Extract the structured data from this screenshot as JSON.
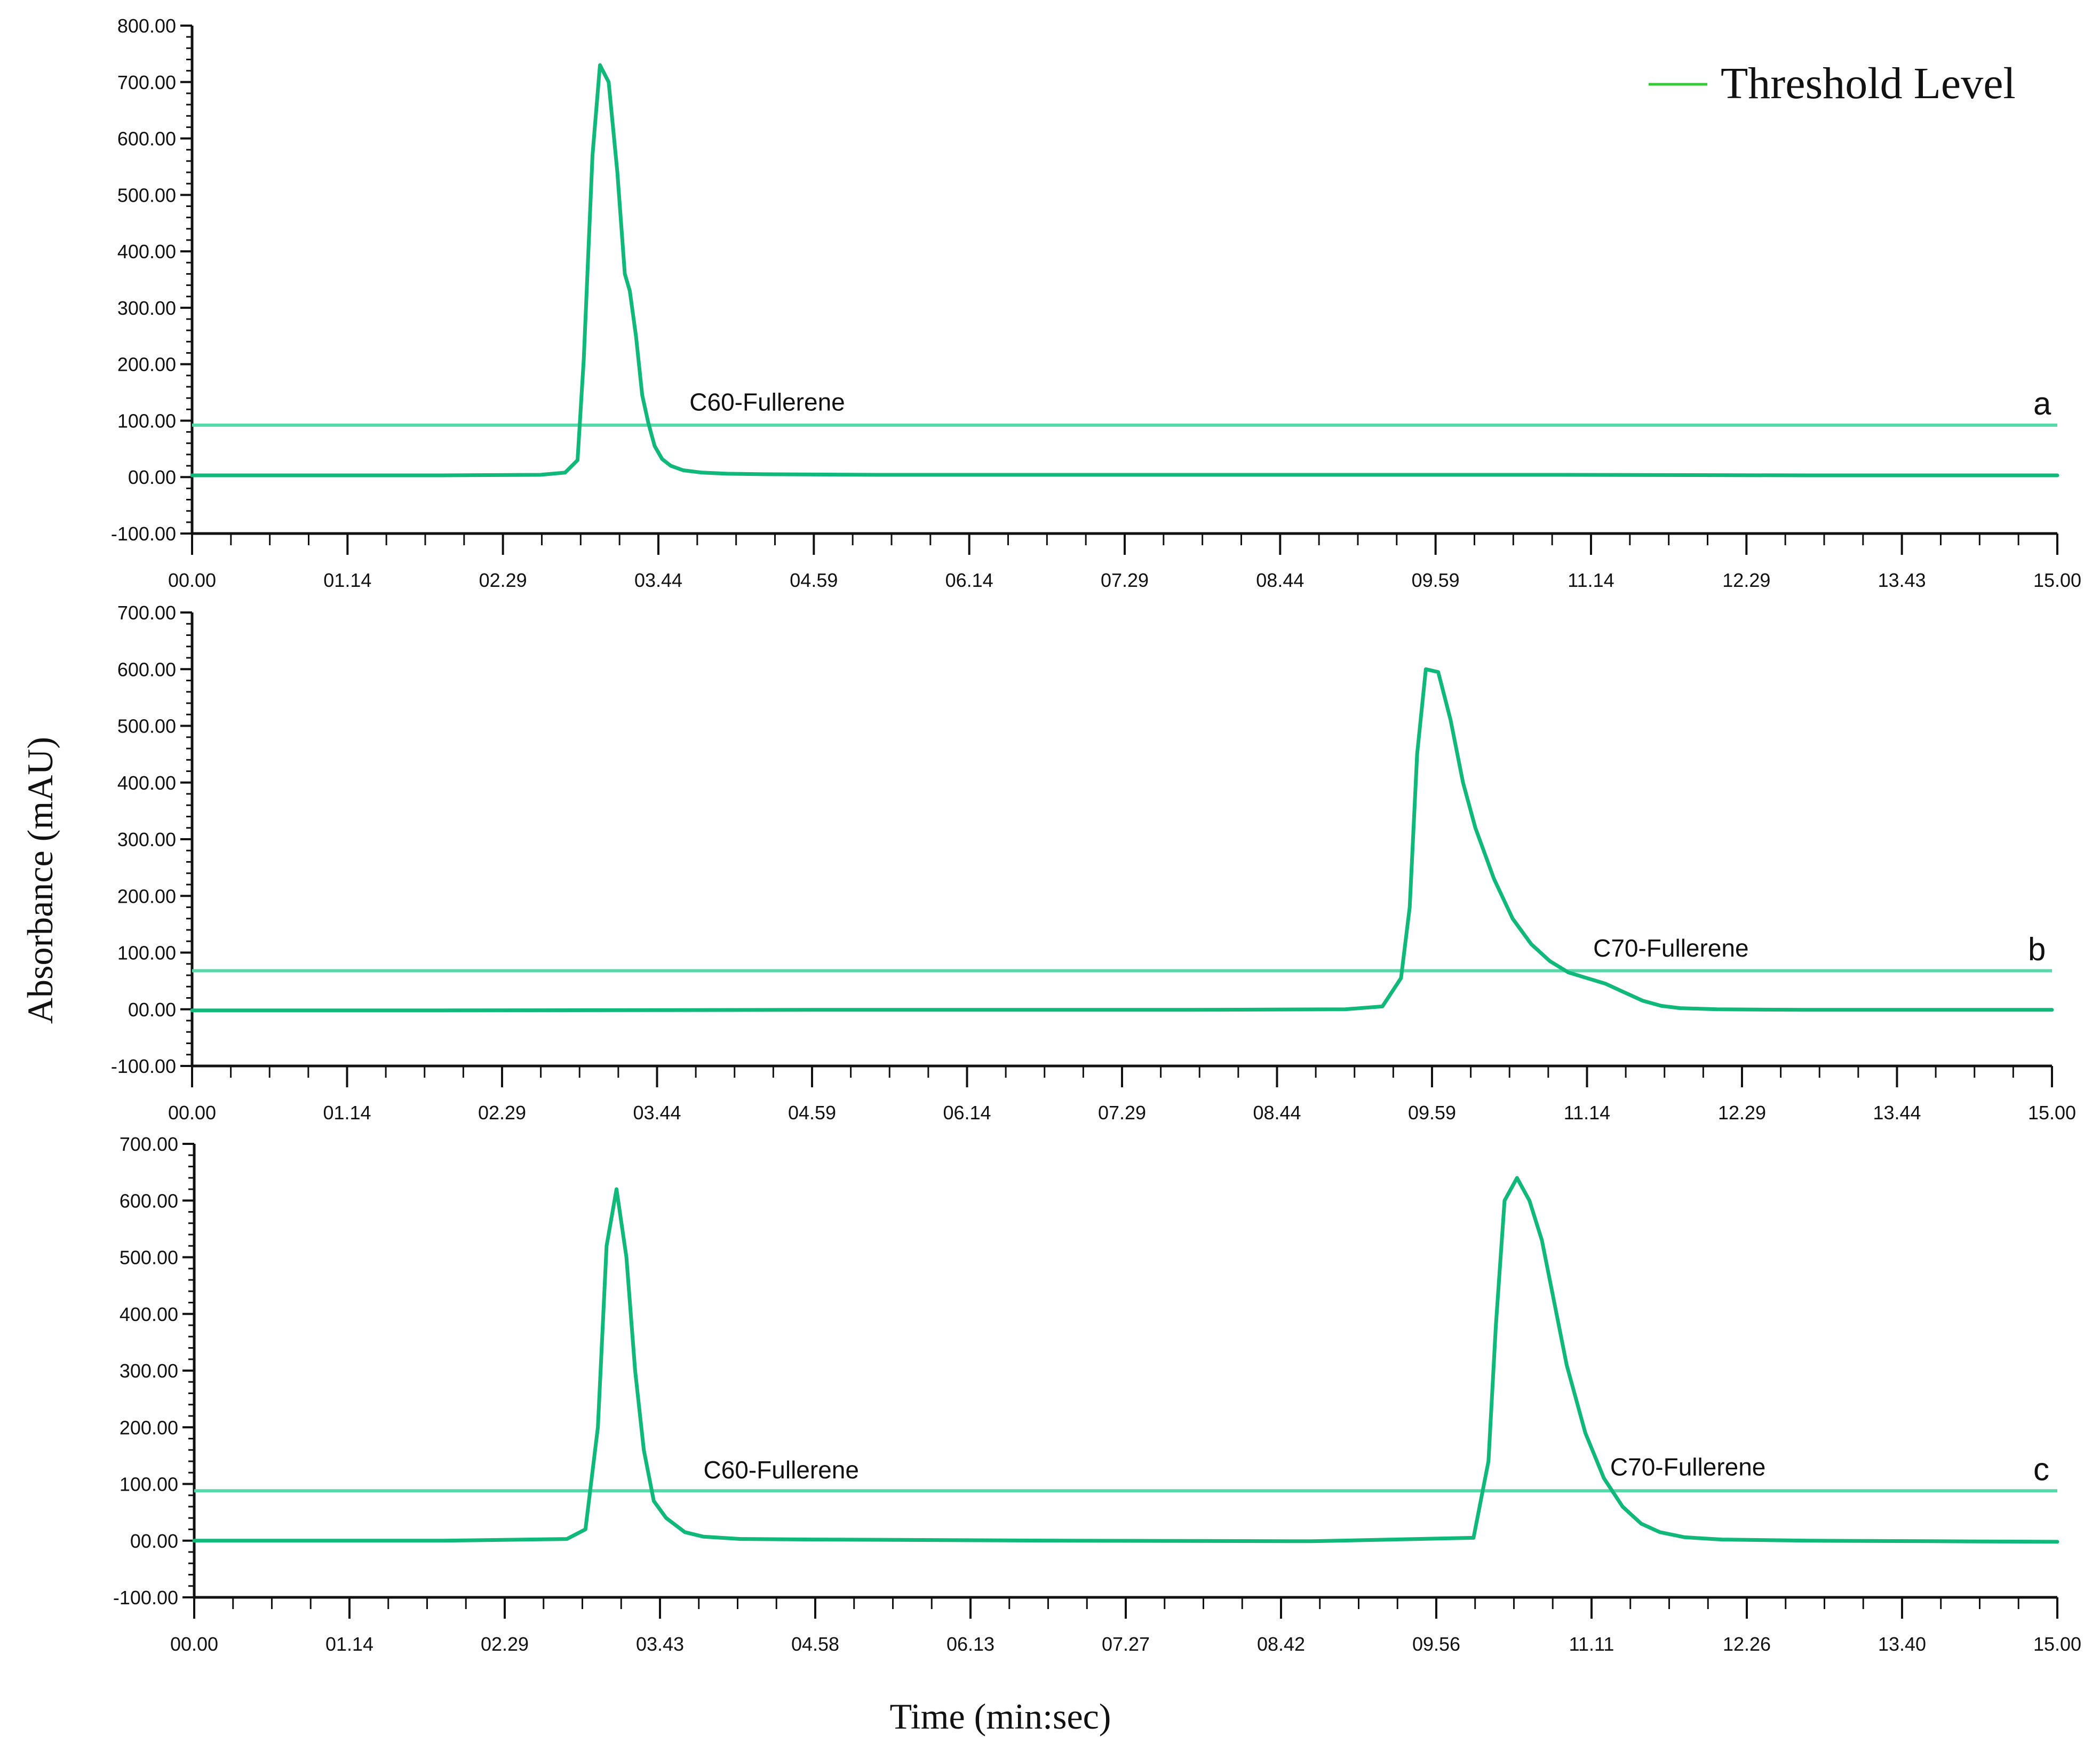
{
  "chart_data": {
    "type": "line",
    "xlabel": "Time (min:sec)",
    "ylabel": "Absorbance (mAU)",
    "legend": {
      "label": "Threshold Level",
      "color": "#33cc33",
      "placement": "top-right"
    },
    "series_color": "#10b87a",
    "threshold_color": "#56d8a8",
    "panels": [
      {
        "id": "a",
        "label": "a",
        "ylim": [
          -100,
          800
        ],
        "yticks": [
          "-100.00",
          "00.00",
          "100.00",
          "200.00",
          "300.00",
          "400.00",
          "500.00",
          "600.00",
          "700.00",
          "800.00"
        ],
        "ytick_values": [
          -100,
          0,
          100,
          200,
          300,
          400,
          500,
          600,
          700,
          800
        ],
        "xlim": [
          0,
          15
        ],
        "xticks": [
          "00.00",
          "01.14",
          "02.29",
          "03.44",
          "04.59",
          "06.14",
          "07.29",
          "08.44",
          "09.59",
          "11.14",
          "12.29",
          "13.43",
          "15.00"
        ],
        "threshold": 92,
        "annotations": [
          {
            "text": "C60-Fullerene",
            "x": 4.0,
            "y": 118
          }
        ],
        "series": [
          {
            "x": [
              0,
              1.0,
              2.0,
              2.8,
              3.0,
              3.1,
              3.15,
              3.22,
              3.28,
              3.35,
              3.42,
              3.48,
              3.52,
              3.57,
              3.62,
              3.67,
              3.72,
              3.78,
              3.85,
              3.95,
              4.1,
              4.3,
              4.6,
              5.5,
              7.0,
              9.0,
              11.0,
              13.0,
              15.0
            ],
            "y": [
              3,
              3,
              3,
              4,
              8,
              30,
              210,
              570,
              730,
              700,
              540,
              360,
              330,
              250,
              145,
              95,
              55,
              32,
              20,
              12,
              8,
              6,
              5,
              4,
              4,
              4,
              4,
              3,
              3
            ]
          }
        ]
      },
      {
        "id": "b",
        "label": "b",
        "ylim": [
          -100,
          700
        ],
        "yticks": [
          "-100.00",
          "00.00",
          "100.00",
          "200.00",
          "300.00",
          "400.00",
          "500.00",
          "600.00",
          "700.00"
        ],
        "ytick_values": [
          -100,
          0,
          100,
          200,
          300,
          400,
          500,
          600,
          700
        ],
        "xlim": [
          0,
          15
        ],
        "xticks": [
          "00.00",
          "01.14",
          "02.29",
          "03.44",
          "04.59",
          "06.14",
          "07.29",
          "08.44",
          "09.59",
          "11.14",
          "12.29",
          "13.44",
          "15.00"
        ],
        "threshold": 68,
        "annotations": [
          {
            "text": "C70-Fullerene",
            "x": 11.3,
            "y": 93
          }
        ],
        "series": [
          {
            "x": [
              0,
              2.0,
              5.0,
              8.0,
              9.3,
              9.6,
              9.75,
              9.82,
              9.88,
              9.95,
              10.05,
              10.15,
              10.25,
              10.35,
              10.5,
              10.65,
              10.8,
              10.95,
              11.1,
              11.25,
              11.4,
              11.55,
              11.7,
              11.85,
              12.0,
              12.3,
              13.0,
              14.0,
              15.0
            ],
            "y": [
              -2,
              -2,
              -1,
              -1,
              0,
              5,
              55,
              180,
              450,
              600,
              595,
              510,
              400,
              320,
              230,
              160,
              115,
              85,
              65,
              55,
              45,
              30,
              15,
              6,
              2,
              0,
              -1,
              -1,
              -1
            ]
          }
        ]
      },
      {
        "id": "c",
        "label": "c",
        "ylim": [
          -100,
          700
        ],
        "yticks": [
          "-100.00",
          "00.00",
          "100.00",
          "200.00",
          "300.00",
          "400.00",
          "500.00",
          "600.00",
          "700.00"
        ],
        "ytick_values": [
          -100,
          0,
          100,
          200,
          300,
          400,
          500,
          600,
          700
        ],
        "xlim": [
          0,
          15
        ],
        "xticks": [
          "00.00",
          "01.14",
          "02.29",
          "03.43",
          "04.58",
          "06.13",
          "07.27",
          "08.42",
          "09.56",
          "11.11",
          "12.26",
          "13.40",
          "15.00"
        ],
        "threshold": 88,
        "annotations": [
          {
            "text": "C60-Fullerene",
            "x": 4.1,
            "y": 110
          },
          {
            "text": "C70-Fullerene",
            "x": 11.4,
            "y": 115
          }
        ],
        "series": [
          {
            "x": [
              0,
              1.0,
              2.0,
              3.0,
              3.15,
              3.25,
              3.32,
              3.4,
              3.48,
              3.55,
              3.62,
              3.7,
              3.8,
              3.95,
              4.1,
              4.4,
              5.0,
              7.0,
              9.0,
              10.3,
              10.42,
              10.48,
              10.55,
              10.65,
              10.75,
              10.85,
              10.95,
              11.05,
              11.2,
              11.35,
              11.5,
              11.65,
              11.8,
              12.0,
              12.3,
              13.0,
              14.0,
              15.0
            ],
            "y": [
              0,
              0,
              0,
              3,
              20,
              200,
              520,
              620,
              500,
              300,
              160,
              70,
              40,
              15,
              7,
              3,
              2,
              0,
              -1,
              5,
              140,
              380,
              600,
              640,
              600,
              530,
              420,
              310,
              190,
              110,
              60,
              30,
              15,
              6,
              2,
              0,
              -1,
              -2
            ]
          }
        ]
      }
    ]
  }
}
